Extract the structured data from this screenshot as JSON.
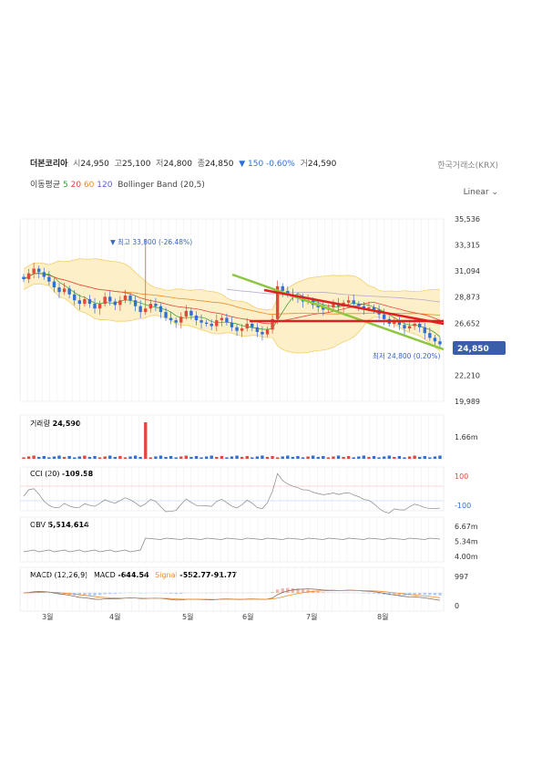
{
  "header": {
    "name": "더본코리아",
    "open_label": "시",
    "open": "24,950",
    "high_label": "고",
    "high": "25,100",
    "low_label": "저",
    "low": "24,800",
    "close_label": "종",
    "close": "24,850",
    "change": "▼ 150 -0.60%",
    "volume_label": "거",
    "volume": "24,590",
    "exchange": "한국거래소(KRX)"
  },
  "indicators": {
    "ma_label": "이동평균",
    "ma5": "5",
    "ma20": "20",
    "ma60": "60",
    "ma120": "120",
    "bb": "Bollinger Band (20,5)",
    "scale_mode": "Linear"
  },
  "colors": {
    "up": "#e0493c",
    "down": "#2f6fd6",
    "bb_fill": "#fdf0c8",
    "bb_line": "#f2cf6e",
    "green_trend": "#8dc63f",
    "red_trend": "#e02020",
    "ma120": "#b9a9c9"
  },
  "chart_data": {
    "type": "candlestick",
    "x_ticks": [
      "3월",
      "4월",
      "5월",
      "6월",
      "7월",
      "8월"
    ],
    "price_ticks": [
      "35,536",
      "33,315",
      "31,094",
      "28,873",
      "26,652",
      "24,850",
      "22,210",
      "19,989"
    ],
    "ylim": [
      19989,
      35536
    ],
    "current_price": "24,850",
    "annotations": {
      "high": "▼ 최고 33,800 (-26.48%)",
      "low": "최저 24,800 (0.20%)"
    },
    "close_series": [
      30400,
      30900,
      31300,
      31000,
      30600,
      30200,
      29700,
      29300,
      29600,
      29100,
      28600,
      28300,
      28700,
      28300,
      27900,
      28300,
      28900,
      28500,
      28200,
      28600,
      29000,
      28600,
      28100,
      27600,
      27900,
      28300,
      28100,
      27600,
      27100,
      26900,
      26700,
      27200,
      27700,
      27300,
      26900,
      26700,
      26600,
      26400,
      26900,
      27100,
      26700,
      26300,
      26000,
      26200,
      26600,
      26300,
      25900,
      25700,
      26100,
      27000,
      29800,
      29400,
      29100,
      28900,
      28800,
      28500,
      28600,
      28200,
      28000,
      27800,
      28000,
      28300,
      28100,
      28400,
      28600,
      28300,
      28100,
      27900,
      28000,
      27800,
      27400,
      27000,
      26600,
      26800,
      26500,
      26200,
      26400,
      26600,
      26300,
      25800,
      25400,
      25100,
      24850
    ],
    "volume": {
      "label": "거래량",
      "value": "24,590",
      "ticks": [
        "1.66m"
      ],
      "spike_index": 24,
      "spike_value": 1660000
    },
    "cci": {
      "label": "CCI (20)",
      "value": "-109.58",
      "ticks": [
        "100",
        "-100"
      ],
      "levels": [
        100,
        -100
      ]
    },
    "obv": {
      "label": "OBV",
      "value": "5,514,614",
      "ticks": [
        "6.67m",
        "5.34m",
        "4.00m"
      ]
    },
    "macd": {
      "label": "MACD (12,26,9)",
      "macd_label": "MACD",
      "macd_value": "-644.54",
      "signal_label": "Signal",
      "signal_value": "-552.77",
      "hist_value": "-91.77",
      "ticks": [
        "997",
        "0"
      ]
    }
  }
}
